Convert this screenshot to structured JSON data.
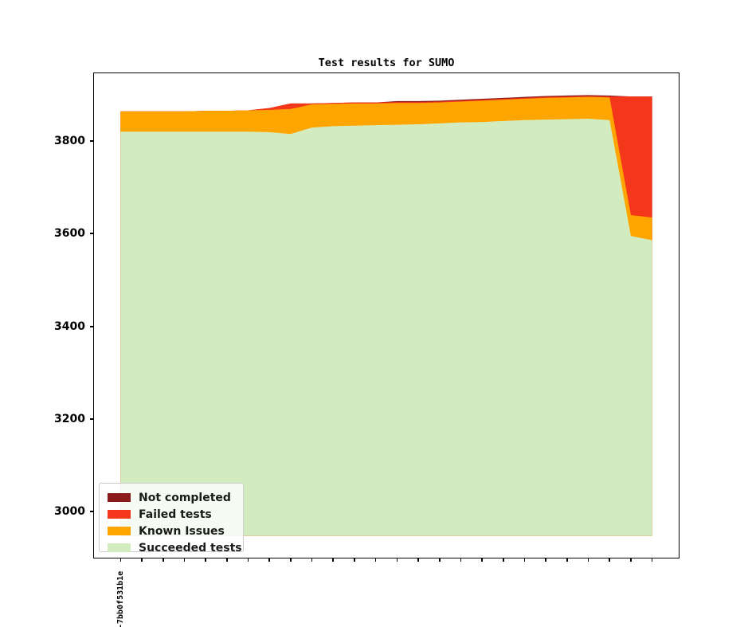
{
  "title": "Test results for SUMO",
  "colors": {
    "background": "#ffffff",
    "axis": "#000000",
    "not_completed": "#8B1B1B",
    "failed": "#F4371B",
    "known_issues": "#FFA500",
    "succeeded": "#D2ECC0",
    "legend_border": "#cccccc",
    "legend_text": "#1a1a1a"
  },
  "chart_data": {
    "type": "area",
    "stacked": true,
    "title": "Test results for SUMO",
    "x_points": 26,
    "x_first_tick_label": "-7bb0f531b1e",
    "xlabel": "",
    "ylabel": "",
    "y_ticks": [
      3000,
      3200,
      3400,
      3600,
      3800
    ],
    "ylim": [
      2901,
      3946
    ],
    "xlim": [
      -1.25,
      26.25
    ],
    "area_baseline": 2948,
    "grid": false,
    "legend_position": "lower left",
    "series": [
      {
        "name": "Succeeded tests",
        "color": "#D2ECC0",
        "values": [
          3820,
          3820,
          3820,
          3820,
          3820,
          3820,
          3820,
          3819,
          3815,
          3829,
          3832,
          3833,
          3834,
          3835,
          3836,
          3838,
          3840,
          3841,
          3843,
          3845,
          3846,
          3847,
          3848,
          3845,
          3595,
          3586
        ]
      },
      {
        "name": "Known Issues",
        "color": "#FFA500",
        "values": [
          44,
          44,
          44,
          44,
          45,
          45,
          46,
          48,
          54,
          50,
          48,
          48,
          47,
          47,
          46,
          45,
          45,
          46,
          46,
          46,
          47,
          47,
          47,
          49,
          45,
          49
        ]
      },
      {
        "name": "Failed tests",
        "color": "#F4371B",
        "values": [
          0,
          0,
          0,
          0,
          0,
          0,
          0,
          4,
          12,
          2,
          2,
          2,
          2,
          2,
          2,
          2,
          2,
          2,
          2,
          2,
          2,
          2,
          2,
          2,
          256,
          261
        ]
      },
      {
        "name": "Not completed",
        "color": "#8B1B1B",
        "values": [
          0,
          0,
          0,
          0,
          0,
          0,
          0,
          0,
          0,
          0,
          0,
          0,
          0,
          2,
          2,
          2,
          2,
          2,
          2,
          2,
          2,
          2,
          2,
          2,
          0,
          0
        ]
      }
    ],
    "legend": {
      "entries": [
        {
          "label": "Not completed",
          "color": "#8B1B1B"
        },
        {
          "label": "Failed tests",
          "color": "#F4371B"
        },
        {
          "label": "Known Issues",
          "color": "#FFA500"
        },
        {
          "label": "Succeeded tests",
          "color": "#D2ECC0"
        }
      ]
    }
  }
}
